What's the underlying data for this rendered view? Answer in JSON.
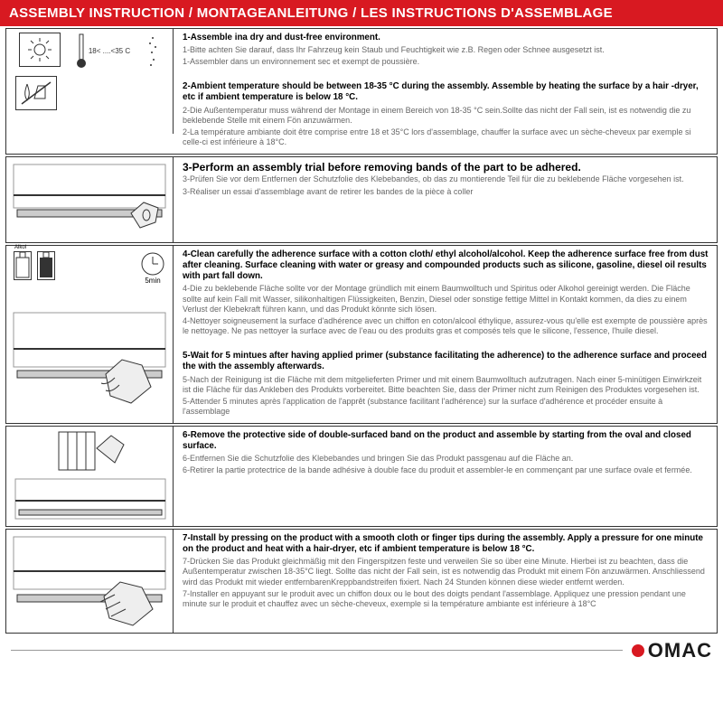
{
  "colors": {
    "accent": "#d81921",
    "border": "#333333",
    "text": "#333333",
    "subtext": "#666666",
    "bg": "#ffffff"
  },
  "header": "ASSEMBLY INSTRUCTION / MONTAGEANLEITUNG / LES INSTRUCTIONS D'ASSEMBLAGE",
  "panels": [
    {
      "temp_range": "18< ....<35 C",
      "lines": [
        {
          "cls": "bold",
          "t": "1-Assemble ina dry and dust-free environment."
        },
        {
          "cls": "sub",
          "t": "1-Bitte achten Sie darauf, dass Ihr Fahrzeug kein Staub und Feuchtigkeit wie z.B. Regen oder Schnee ausgesetzt ist."
        },
        {
          "cls": "sub",
          "t": "1-Assembler dans un environnement sec et exempt de poussière."
        },
        {
          "cls": "",
          "t": ""
        },
        {
          "cls": "bold",
          "t": "2-Ambient temperature should be between 18-35 °C  during the assembly. Assemble by heating the surface by a hair -dryer, etc if ambient temperature is below 18 °C."
        },
        {
          "cls": "sub",
          "t": "2-Die Außentemperatur muss während der Montage in einem Bereich von 18-35 °C  sein.Sollte das nicht der Fall sein, ist es notwendig die zu beklebende Stelle mit einem Fön anzuwärmen."
        },
        {
          "cls": "sub",
          "t": "2-La température ambiante doit être comprise entre 18 et 35°C lors d'assemblage, chauffer la surface avec un sèche-cheveux par exemple si celle-ci est inférieure à 18°C."
        }
      ]
    },
    {
      "lines": [
        {
          "cls": "bold-lg",
          "t": "3-Perform an assembly trial before removing bands of the part to be adhered."
        },
        {
          "cls": "sub",
          "t": "3-Prüfen Sie vor dem Entfernen der Schutzfolie des Klebebandes, ob das zu montierende Teil für die zu beklebende Fläche vorgesehen ist."
        },
        {
          "cls": "sub",
          "t": "3-Réaliser un essai d'assemblage avant de retirer les bandes de la pièce à coller"
        }
      ]
    },
    {
      "bottle1": "Alkol",
      "clock_label": "5min",
      "lines": [
        {
          "cls": "bold",
          "t": "4-Clean carefully the adherence surface with a cotton cloth/ ethyl alcohol/alcohol. Keep the adherence surface free from dust after cleaning. Surface cleaning with water or greasy and compounded products such as silicone, gasoline, diesel oil results with part fall down."
        },
        {
          "cls": "sub",
          "t": "4-Die zu beklebende Fläche sollte vor der Montage gründlich mit einem Baumwolltuch und Spiritus oder Alkohol gereinigt werden. Die Fläche sollte auf kein Fall mit Wasser, silikonhaltigen Flüssigkeiten, Benzin, Diesel oder sonstige fettige Mittel in Kontakt kommen, da dies zu einem Verlust der Klebekraft führen kann, und das Produkt könnte sich lösen."
        },
        {
          "cls": "sub",
          "t": "4-Nettoyer soigneusement la surface d'adhérence avec un chiffon en coton/alcool éthylique, assurez-vous qu'elle est exempte de poussière après le nettoyage. Ne pas nettoyer la surface avec de l'eau ou des produits gras et composés tels que le silicone, l'essence, l'huile diesel."
        },
        {
          "cls": "",
          "t": ""
        },
        {
          "cls": "bold",
          "t": "5-Wait for 5 mintues after having applied primer (substance facilitating the adherence) to the adherence surface and proceed the with the assembly afterwards."
        },
        {
          "cls": "sub",
          "t": "5-Nach der Reinigung ist die Fläche mit dem mitgelieferten Primer und mit einem Baumwolltuch aufzutragen. Nach einer 5-minütigen Einwirkzeit ist die Fläche für das Ankleben des Produkts vorbereitet. Bitte beachten Sie, dass der Primer nicht zum Reinigen des Produktes vorgesehen ist."
        },
        {
          "cls": "sub",
          "t": "5-Attender 5 minutes après l'application de l'apprêt (substance facilitant l'adhérence) sur la surface d'adhérence et procéder ensuite à l'assemblage"
        }
      ]
    },
    {
      "lines": [
        {
          "cls": "bold",
          "t": "6-Remove the protective side of double-surfaced band on the product and assemble by starting from the oval and closed surface."
        },
        {
          "cls": "sub",
          "t": "6-Entfernen Sie die Schutzfolie des Klebebandes und bringen Sie das Produkt passgenau auf die Fläche an."
        },
        {
          "cls": "sub",
          "t": "6-Retirer la partie protectrice de la bande adhésive à double face du produit et assembler-le en commençant par une surface ovale et fermée."
        }
      ]
    },
    {
      "lines": [
        {
          "cls": "bold",
          "t": "7-Install by pressing on the product with a smooth cloth or finger tips during the assembly. Apply a pressure for one minute on the product and heat with a hair-dryer, etc if ambient temperature is below 18 °C."
        },
        {
          "cls": "sub",
          "t": "7-Drücken Sie das Produkt gleichmäßig mit den Fingerspitzen feste und verweilen Sie so über eine Minute. Hierbei ist zu beachten, dass die Außentemperatur zwischen 18-35°C liegt. Sollte das nicht der Fall sein, ist es notwendig das Produkt mit einem Fön anzuwärmen. Anschliessend wird das Produkt mit wieder entfernbarenKreppbandstreifen fixiert. Nach 24 Stunden können diese wieder entfernt werden."
        },
        {
          "cls": "sub",
          "t": "7-Installer en appuyant sur le produit avec un chiffon doux ou le bout des doigts pendant l'assemblage. Appliquez une pression pendant une minute sur le produit et chauffez avec un sèche-cheveux, exemple si la température ambiante est inférieure à 18°C"
        }
      ]
    }
  ],
  "brand": "OMAC"
}
